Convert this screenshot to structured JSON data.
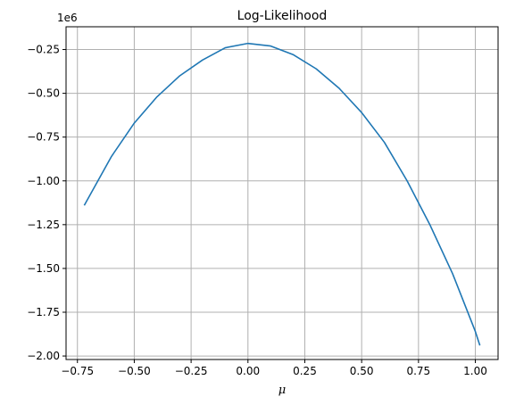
{
  "chart_data": {
    "type": "line",
    "title": "Log-Likelihood",
    "xlabel": "μ",
    "ylabel": "",
    "y_offset_label": "1e6",
    "xlim": [
      -0.8,
      1.1
    ],
    "ylim": [
      -2.02,
      -0.12
    ],
    "grid": true,
    "x_ticks": [
      -0.75,
      -0.5,
      -0.25,
      0.0,
      0.25,
      0.5,
      0.75,
      1.0
    ],
    "x_tick_labels": [
      "−0.75",
      "−0.50",
      "−0.25",
      "0.00",
      "0.25",
      "0.50",
      "0.75",
      "1.00"
    ],
    "y_ticks": [
      -0.25,
      -0.5,
      -0.75,
      -1.0,
      -1.25,
      -1.5,
      -1.75,
      -2.0
    ],
    "y_tick_labels": [
      "−0.25",
      "−0.50",
      "−0.75",
      "−1.00",
      "−1.25",
      "−1.50",
      "−1.75",
      "−2.00"
    ],
    "series": [
      {
        "color": "#1f77b4",
        "x": [
          -0.72,
          -0.6,
          -0.5,
          -0.4,
          -0.3,
          -0.2,
          -0.1,
          0.0,
          0.1,
          0.2,
          0.3,
          0.4,
          0.5,
          0.6,
          0.7,
          0.8,
          0.9,
          1.0,
          1.02
        ],
        "y": [
          -1.14,
          -0.86,
          -0.67,
          -0.52,
          -0.4,
          -0.31,
          -0.24,
          -0.215,
          -0.23,
          -0.28,
          -0.36,
          -0.47,
          -0.61,
          -0.78,
          -1.0,
          -1.25,
          -1.53,
          -1.86,
          -1.94
        ]
      }
    ]
  }
}
